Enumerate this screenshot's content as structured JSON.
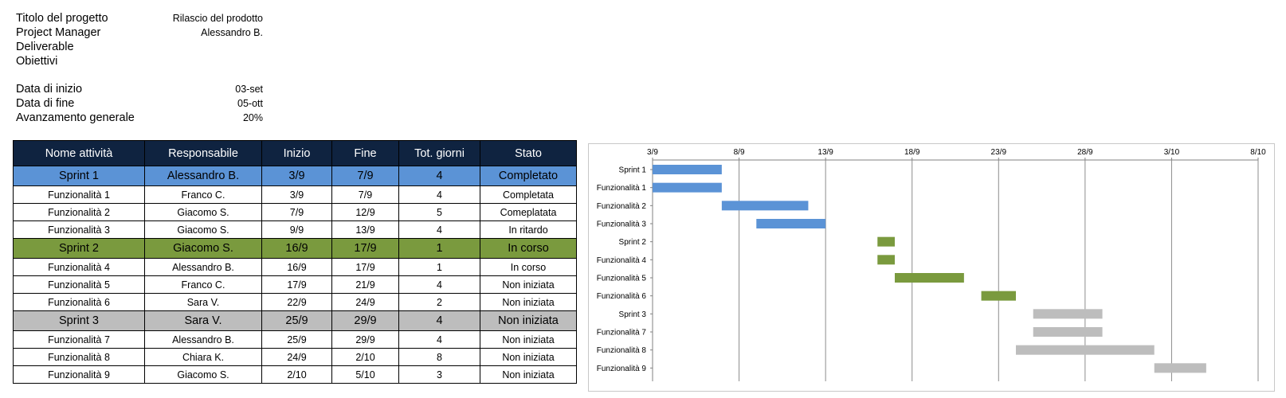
{
  "project": {
    "title_label": "Titolo del progetto",
    "title_value": "Rilascio del prodotto",
    "manager_label": "Project Manager",
    "manager_value": "Alessandro B.",
    "deliverable_label": "Deliverable",
    "objectives_label": "Obiettivi",
    "start_label": "Data di inizio",
    "start_value": "03-set",
    "end_label": "Data di fine",
    "end_value": "05-ott",
    "progress_label": "Avanzamento generale",
    "progress_value": "20%"
  },
  "table": {
    "headers": [
      "Nome attività",
      "Responsabile",
      "Inizio",
      "Fine",
      "Tot. giorni",
      "Stato"
    ],
    "rows": [
      {
        "name": "Sprint 1",
        "owner": "Alessandro B.",
        "start": "3/9",
        "end": "7/9",
        "days": "4",
        "status": "Completato",
        "kind": "sprint",
        "group": "blue"
      },
      {
        "name": "Funzionalità 1",
        "owner": "Franco C.",
        "start": "3/9",
        "end": "7/9",
        "days": "4",
        "status": "Completata",
        "kind": "task",
        "group": "blue"
      },
      {
        "name": "Funzionalità 2",
        "owner": "Giacomo S.",
        "start": "7/9",
        "end": "12/9",
        "days": "5",
        "status": "Comeplatata",
        "kind": "task",
        "group": "blue"
      },
      {
        "name": "Funzionalità 3",
        "owner": "Giacomo S.",
        "start": "9/9",
        "end": "13/9",
        "days": "4",
        "status": "In ritardo",
        "kind": "task",
        "group": "blue"
      },
      {
        "name": "Sprint 2",
        "owner": "Giacomo S.",
        "start": "16/9",
        "end": "17/9",
        "days": "1",
        "status": "In corso",
        "kind": "sprint",
        "group": "green"
      },
      {
        "name": "Funzionalità 4",
        "owner": "Alessandro B.",
        "start": "16/9",
        "end": "17/9",
        "days": "1",
        "status": "In corso",
        "kind": "task",
        "group": "green"
      },
      {
        "name": "Funzionalità 5",
        "owner": "Franco C.",
        "start": "17/9",
        "end": "21/9",
        "days": "4",
        "status": "Non iniziata",
        "kind": "task",
        "group": "green"
      },
      {
        "name": "Funzionalità 6",
        "owner": "Sara V.",
        "start": "22/9",
        "end": "24/9",
        "days": "2",
        "status": "Non iniziata",
        "kind": "task",
        "group": "green"
      },
      {
        "name": "Sprint 3",
        "owner": "Sara V.",
        "start": "25/9",
        "end": "29/9",
        "days": "4",
        "status": "Non iniziata",
        "kind": "sprint",
        "group": "gray"
      },
      {
        "name": "Funzionalità 7",
        "owner": "Alessandro B.",
        "start": "25/9",
        "end": "29/9",
        "days": "4",
        "status": "Non iniziata",
        "kind": "task",
        "group": "gray"
      },
      {
        "name": "Funzionalità 8",
        "owner": "Chiara K.",
        "start": "24/9",
        "end": "2/10",
        "days": "8",
        "status": "Non iniziata",
        "kind": "task",
        "group": "gray"
      },
      {
        "name": "Funzionalità 9",
        "owner": "Giacomo S.",
        "start": "2/10",
        "end": "5/10",
        "days": "3",
        "status": "Non iniziata",
        "kind": "task",
        "group": "gray"
      }
    ]
  },
  "colors": {
    "blue": "#5b93d6",
    "green": "#7a9a3e",
    "gray": "#bdbdbd",
    "header": "#0f2340"
  },
  "chart_data": {
    "type": "bar",
    "orientation": "horizontal",
    "title": "",
    "xlabel": "",
    "ylabel": "",
    "x_ticks": [
      "3/9",
      "8/9",
      "13/9",
      "18/9",
      "23/9",
      "28/9",
      "3/10",
      "8/10"
    ],
    "xlim": [
      "3/9",
      "8/10"
    ],
    "grid": true,
    "categories": [
      "Sprint 1",
      "Funzionalità 1",
      "Funzionalità 2",
      "Funzionalità 3",
      "Sprint 2",
      "Funzionalità 4",
      "Funzionalità 5",
      "Funzionalità 6",
      "Sprint 3",
      "Funzionalità 7",
      "Funzionalità 8",
      "Funzionalità 9"
    ],
    "bars": [
      {
        "label": "Sprint 1",
        "start": "3/9",
        "end": "7/9",
        "color": "#5b93d6"
      },
      {
        "label": "Funzionalità 1",
        "start": "3/9",
        "end": "7/9",
        "color": "#5b93d6"
      },
      {
        "label": "Funzionalità 2",
        "start": "7/9",
        "end": "12/9",
        "color": "#5b93d6"
      },
      {
        "label": "Funzionalità 3",
        "start": "9/9",
        "end": "13/9",
        "color": "#5b93d6"
      },
      {
        "label": "Sprint 2",
        "start": "16/9",
        "end": "17/9",
        "color": "#7a9a3e"
      },
      {
        "label": "Funzionalità 4",
        "start": "16/9",
        "end": "17/9",
        "color": "#7a9a3e"
      },
      {
        "label": "Funzionalità 5",
        "start": "17/9",
        "end": "21/9",
        "color": "#7a9a3e"
      },
      {
        "label": "Funzionalità 6",
        "start": "22/9",
        "end": "24/9",
        "color": "#7a9a3e"
      },
      {
        "label": "Sprint 3",
        "start": "25/9",
        "end": "29/9",
        "color": "#bdbdbd"
      },
      {
        "label": "Funzionalità 7",
        "start": "25/9",
        "end": "29/9",
        "color": "#bdbdbd"
      },
      {
        "label": "Funzionalità 8",
        "start": "24/9",
        "end": "2/10",
        "color": "#bdbdbd"
      },
      {
        "label": "Funzionalità 9",
        "start": "2/10",
        "end": "5/10",
        "color": "#bdbdbd"
      }
    ]
  }
}
